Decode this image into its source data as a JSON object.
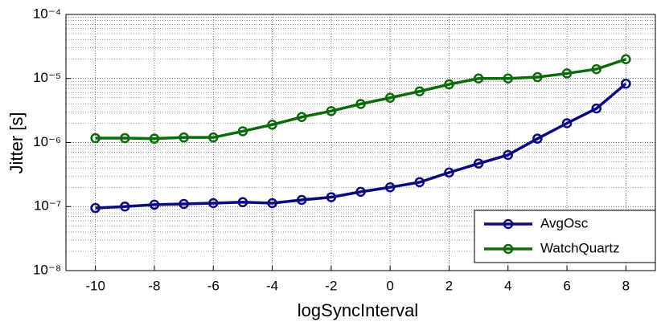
{
  "chart_data": {
    "type": "line",
    "xlabel": "logSyncInterval",
    "ylabel": "Jitter [s]",
    "x": [
      -10,
      -9,
      -8,
      -7,
      -6,
      -5,
      -4,
      -3,
      -2,
      -1,
      0,
      1,
      2,
      3,
      4,
      5,
      6,
      7,
      8
    ],
    "series": [
      {
        "name": "AvgOsc",
        "color": "#0b0b80",
        "values": [
          9.5e-08,
          1e-07,
          1.07e-07,
          1.1e-07,
          1.13e-07,
          1.17e-07,
          1.13e-07,
          1.27e-07,
          1.4e-07,
          1.7e-07,
          2e-07,
          2.4e-07,
          3.4e-07,
          4.7e-07,
          6.4e-07,
          1.15e-06,
          2e-06,
          3.4e-06,
          8.3e-06
        ]
      },
      {
        "name": "WatchQuartz",
        "color": "#0b6b0b",
        "values": [
          1.17e-06,
          1.17e-06,
          1.15e-06,
          1.2e-06,
          1.2e-06,
          1.5e-06,
          1.9e-06,
          2.5e-06,
          3.1e-06,
          4e-06,
          5e-06,
          6.3e-06,
          8.1e-06,
          1e-05,
          1e-05,
          1.05e-05,
          1.2e-05,
          1.4e-05,
          2e-05
        ]
      }
    ],
    "xlim": [
      -11,
      9
    ],
    "xticks": [
      -10,
      -8,
      -6,
      -4,
      -2,
      0,
      2,
      4,
      6,
      8
    ],
    "ylim": [
      1e-08,
      0.0001
    ],
    "ylog": true,
    "yticks": [
      {
        "value": 1e-08,
        "label": "10⁻⁸"
      },
      {
        "value": 1e-07,
        "label": "10⁻⁷"
      },
      {
        "value": 1e-06,
        "label": "10⁻⁶"
      },
      {
        "value": 1e-05,
        "label": "10⁻⁵"
      },
      {
        "value": 0.0001,
        "label": "10⁻⁴"
      }
    ],
    "grid": true,
    "legend": "lower right"
  }
}
